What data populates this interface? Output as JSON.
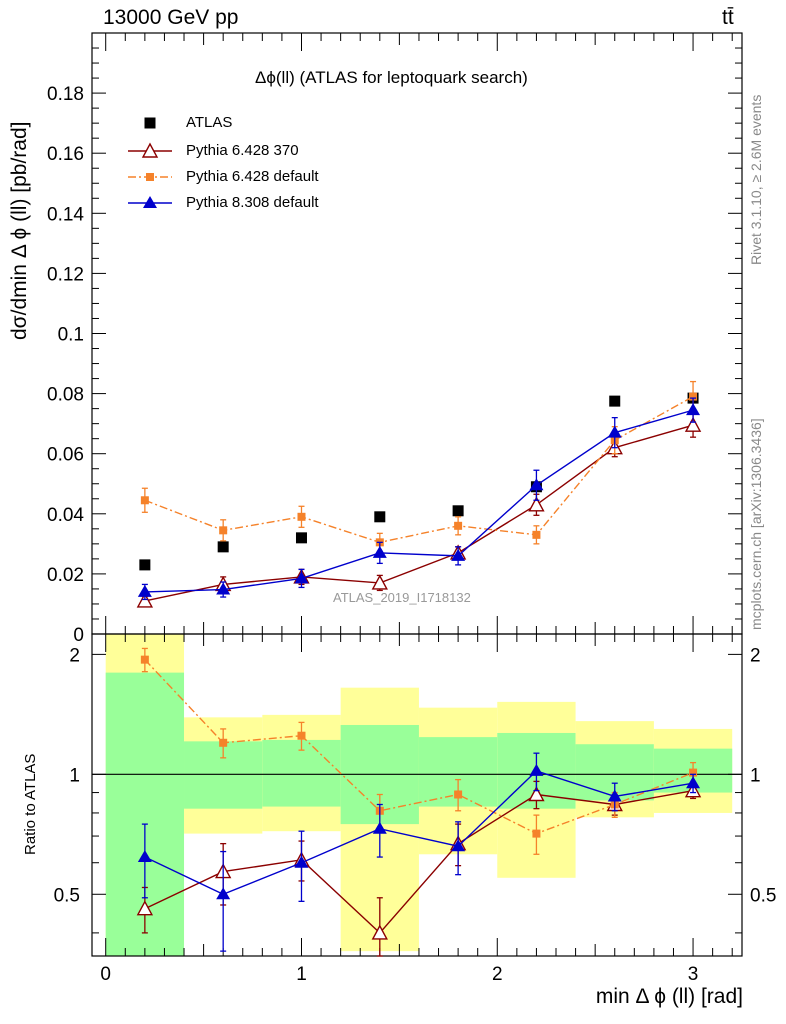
{
  "header": {
    "left": "13000 GeV pp",
    "right": "tt̄"
  },
  "side_text": {
    "rivet": "Rivet 3.1.10, ≥ 2.6M events",
    "mcplots": "mcplots.cern.ch [arXiv:1306.3436]"
  },
  "watermark": "ATLAS_2019_I1718132",
  "colors": {
    "atlas": "#000000",
    "py6_370": "#8b0000",
    "py6_default": "#f5822a",
    "py8_default": "#0000cc",
    "band_inner": "#99ff99",
    "band_outer": "#ffff99"
  },
  "chart_data": [
    {
      "type": "scatter",
      "title": "Δϕ(ll) (ATLAS for leptoquark search)",
      "xlabel": "min Δ ϕ (ll) [rad]",
      "ylabel": "dσ/dmin Δ ϕ (ll) [pb/rad]",
      "xlim": [
        -0.07,
        3.25
      ],
      "ylim": [
        0,
        0.2
      ],
      "y_ticks": [
        "0",
        "0.02",
        "0.04",
        "0.06",
        "0.08",
        "0.1",
        "0.12",
        "0.14",
        "0.16",
        "0.18"
      ],
      "x_ticks": [
        "0",
        "1",
        "2",
        "3"
      ],
      "legend_position": "top-left",
      "x": [
        0.2,
        0.6,
        1.0,
        1.4,
        1.8,
        2.2,
        2.6,
        3.0
      ],
      "series": [
        {
          "name": "ATLAS",
          "values": [
            0.023,
            0.029,
            0.032,
            0.039,
            0.041,
            0.049,
            0.0775,
            0.0785
          ],
          "err": [
            0,
            0,
            0,
            0,
            0,
            0,
            0,
            0
          ],
          "marker": "square",
          "line": "none"
        },
        {
          "name": "Pythia 6.428 370",
          "values": [
            0.011,
            0.0165,
            0.019,
            0.017,
            0.027,
            0.043,
            0.062,
            0.0695
          ],
          "err": [
            0.0015,
            0.0025,
            0.0025,
            0.0025,
            0.002,
            0.0035,
            0.003,
            0.004
          ],
          "marker": "open-triangle",
          "line": "solid"
        },
        {
          "name": "Pythia 6.428 default",
          "values": [
            0.0445,
            0.0345,
            0.039,
            0.0305,
            0.036,
            0.033,
            0.0645,
            0.079
          ],
          "err": [
            0.004,
            0.0035,
            0.0035,
            0.003,
            0.003,
            0.003,
            0.0045,
            0.005
          ],
          "marker": "filled-square-small",
          "line": "dashdot"
        },
        {
          "name": "Pythia 8.308 default",
          "values": [
            0.014,
            0.0148,
            0.0185,
            0.027,
            0.026,
            0.0495,
            0.067,
            0.0745
          ],
          "err": [
            0.0025,
            0.0025,
            0.003,
            0.0035,
            0.003,
            0.005,
            0.005,
            0.004
          ],
          "marker": "filled-triangle",
          "line": "solid"
        }
      ]
    },
    {
      "type": "scatter",
      "title": "",
      "xlabel": "min Δ ϕ (ll) [rad]",
      "ylabel": "Ratio to ATLAS",
      "xlim": [
        -0.07,
        3.25
      ],
      "ylim": [
        0.35,
        2.25
      ],
      "y_ticks": [
        "0.5",
        "1",
        "2"
      ],
      "x": [
        0.2,
        0.6,
        1.0,
        1.4,
        1.8,
        2.2,
        2.6,
        3.0
      ],
      "bin_edges": [
        0,
        0.4,
        0.8,
        1.2,
        1.6,
        2.0,
        2.4,
        2.8,
        3.2
      ],
      "band_inner_lo": [
        0.35,
        0.82,
        0.83,
        0.75,
        0.83,
        0.82,
        0.86,
        0.9
      ],
      "band_inner_hi": [
        1.8,
        1.21,
        1.22,
        1.33,
        1.24,
        1.27,
        1.19,
        1.16
      ],
      "band_outer_lo": [
        0.35,
        0.71,
        0.72,
        0.36,
        0.63,
        0.55,
        0.78,
        0.8
      ],
      "band_outer_hi": [
        2.25,
        1.39,
        1.41,
        1.65,
        1.47,
        1.52,
        1.36,
        1.3
      ],
      "series": [
        {
          "name": "Pythia 6.428 370",
          "values": [
            0.46,
            0.57,
            0.61,
            0.4,
            0.67,
            0.89,
            0.84,
            0.91
          ],
          "err": [
            0.06,
            0.1,
            0.07,
            0.09,
            0.08,
            0.07,
            0.05,
            0.04
          ]
        },
        {
          "name": "Pythia 6.428 default",
          "values": [
            1.94,
            1.2,
            1.25,
            0.81,
            0.89,
            0.71,
            0.84,
            1.01
          ],
          "err": [
            0.13,
            0.1,
            0.1,
            0.08,
            0.08,
            0.08,
            0.06,
            0.06
          ]
        },
        {
          "name": "Pythia 8.308 default",
          "values": [
            0.62,
            0.5,
            0.6,
            0.73,
            0.66,
            1.02,
            0.88,
            0.95
          ],
          "err": [
            0.13,
            0.14,
            0.12,
            0.11,
            0.1,
            0.11,
            0.07,
            0.05
          ]
        }
      ]
    }
  ]
}
